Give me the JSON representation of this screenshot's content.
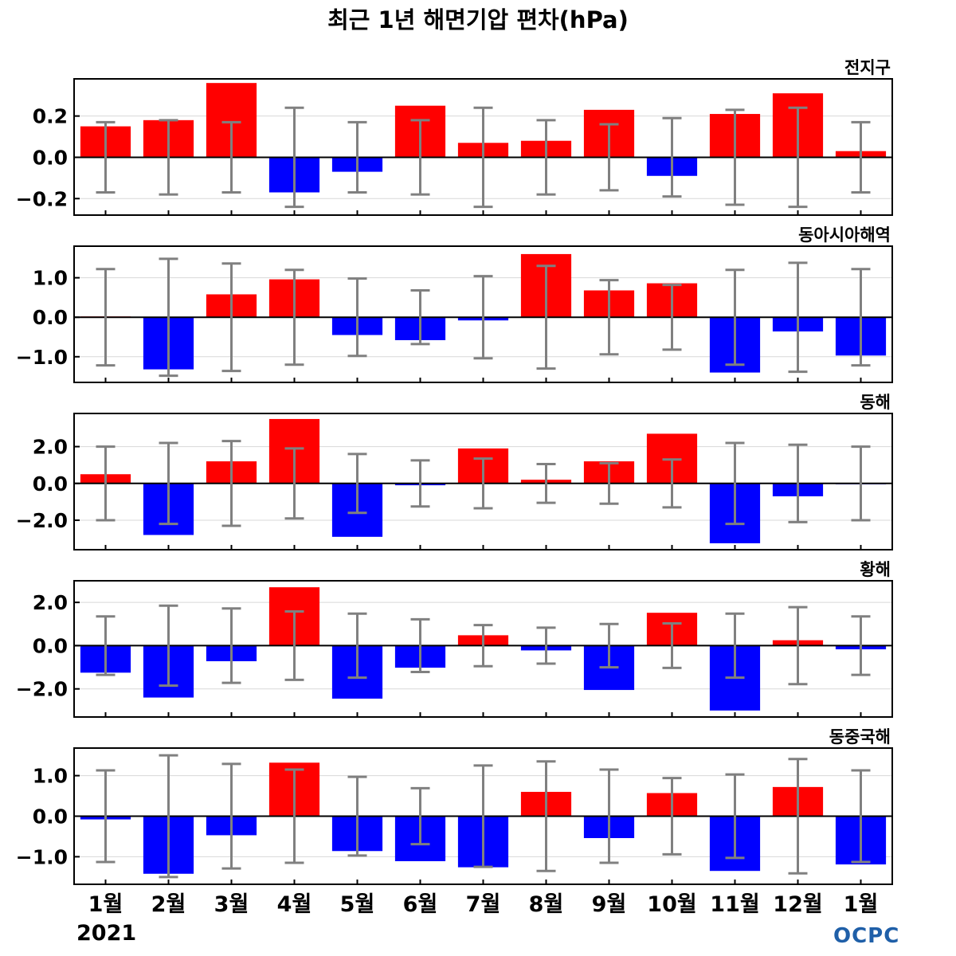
{
  "title": "최근 1년 해면기압 편차(hPa)",
  "year_label": "2021",
  "logo_text": "OCPC",
  "colors": {
    "positive": "#ff0000",
    "negative": "#0000ff",
    "error_bar": "#808080",
    "logo": "#1f5fa8"
  },
  "chart_data": [
    {
      "type": "bar",
      "title": "전지구",
      "ylim": [
        -0.28,
        0.38
      ],
      "yticks": [
        -0.2,
        0.0,
        0.2
      ],
      "ytick_labels": [
        "−0.2",
        "0.0",
        "0.2"
      ],
      "grid": true,
      "categories": [
        "1월",
        "2월",
        "3월",
        "4월",
        "5월",
        "6월",
        "7월",
        "8월",
        "9월",
        "10월",
        "11월",
        "12월",
        "1월"
      ],
      "values": [
        0.15,
        0.18,
        0.36,
        -0.17,
        -0.07,
        0.25,
        0.07,
        0.08,
        0.23,
        -0.09,
        0.21,
        0.31,
        0.03
      ],
      "error": [
        0.17,
        0.18,
        0.17,
        0.24,
        0.17,
        0.18,
        0.24,
        0.18,
        0.16,
        0.19,
        0.23,
        0.24,
        0.17
      ]
    },
    {
      "type": "bar",
      "title": "동아시아해역",
      "ylim": [
        -1.65,
        1.8
      ],
      "yticks": [
        -1.0,
        0.0,
        1.0
      ],
      "ytick_labels": [
        "−1.0",
        "0.0",
        "1.0"
      ],
      "grid": true,
      "categories": [
        "1월",
        "2월",
        "3월",
        "4월",
        "5월",
        "6월",
        "7월",
        "8월",
        "9월",
        "10월",
        "11월",
        "12월",
        "1월"
      ],
      "values": [
        0.02,
        -1.32,
        0.58,
        0.96,
        -0.45,
        -0.58,
        -0.08,
        1.6,
        0.68,
        0.86,
        -1.4,
        -0.36,
        -0.97
      ],
      "error": [
        1.22,
        1.48,
        1.36,
        1.2,
        0.98,
        0.68,
        1.04,
        1.3,
        0.94,
        0.82,
        1.2,
        1.38,
        1.22
      ]
    },
    {
      "type": "bar",
      "title": "동해",
      "ylim": [
        -3.6,
        3.8
      ],
      "yticks": [
        -2.0,
        0.0,
        2.0
      ],
      "ytick_labels": [
        "−2.0",
        "0.0",
        "2.0"
      ],
      "grid": true,
      "categories": [
        "1월",
        "2월",
        "3월",
        "4월",
        "5월",
        "6월",
        "7월",
        "8월",
        "9월",
        "10월",
        "11월",
        "12월",
        "1월"
      ],
      "values": [
        0.5,
        -2.8,
        1.2,
        3.5,
        -2.9,
        -0.1,
        1.9,
        0.2,
        1.2,
        2.7,
        -3.25,
        -0.7,
        -0.05
      ],
      "error": [
        2.0,
        2.2,
        2.3,
        1.9,
        1.6,
        1.25,
        1.35,
        1.05,
        1.1,
        1.3,
        2.2,
        2.1,
        2.0
      ]
    },
    {
      "type": "bar",
      "title": "황해",
      "ylim": [
        -3.3,
        3.0
      ],
      "yticks": [
        -2.0,
        0.0,
        2.0
      ],
      "ytick_labels": [
        "−2.0",
        "0.0",
        "2.0"
      ],
      "grid": true,
      "categories": [
        "1월",
        "2월",
        "3월",
        "4월",
        "5월",
        "6월",
        "7월",
        "8월",
        "9월",
        "10월",
        "11월",
        "12월",
        "1월"
      ],
      "values": [
        -1.25,
        -2.4,
        -0.72,
        2.7,
        -2.45,
        -1.02,
        0.48,
        -0.22,
        -2.05,
        1.52,
        -3.0,
        0.25,
        -0.17
      ],
      "error": [
        1.35,
        1.85,
        1.72,
        1.58,
        1.48,
        1.22,
        0.95,
        0.83,
        1.0,
        1.03,
        1.48,
        1.78,
        1.35
      ]
    },
    {
      "type": "bar",
      "title": "동중국해",
      "ylim": [
        -1.68,
        1.68
      ],
      "yticks": [
        -1.0,
        0.0,
        1.0
      ],
      "ytick_labels": [
        "−1.0",
        "0.0",
        "1.0"
      ],
      "grid": true,
      "categories": [
        "1월",
        "2월",
        "3월",
        "4월",
        "5월",
        "6월",
        "7월",
        "8월",
        "9월",
        "10월",
        "11월",
        "12월",
        "1월"
      ],
      "values": [
        -0.08,
        -1.42,
        -0.47,
        1.32,
        -0.86,
        -1.11,
        -1.26,
        0.6,
        -0.54,
        0.57,
        -1.35,
        0.72,
        -1.19
      ],
      "error": [
        1.13,
        1.5,
        1.29,
        1.15,
        0.97,
        0.69,
        1.25,
        1.35,
        1.15,
        0.94,
        1.03,
        1.41,
        1.13
      ]
    }
  ]
}
